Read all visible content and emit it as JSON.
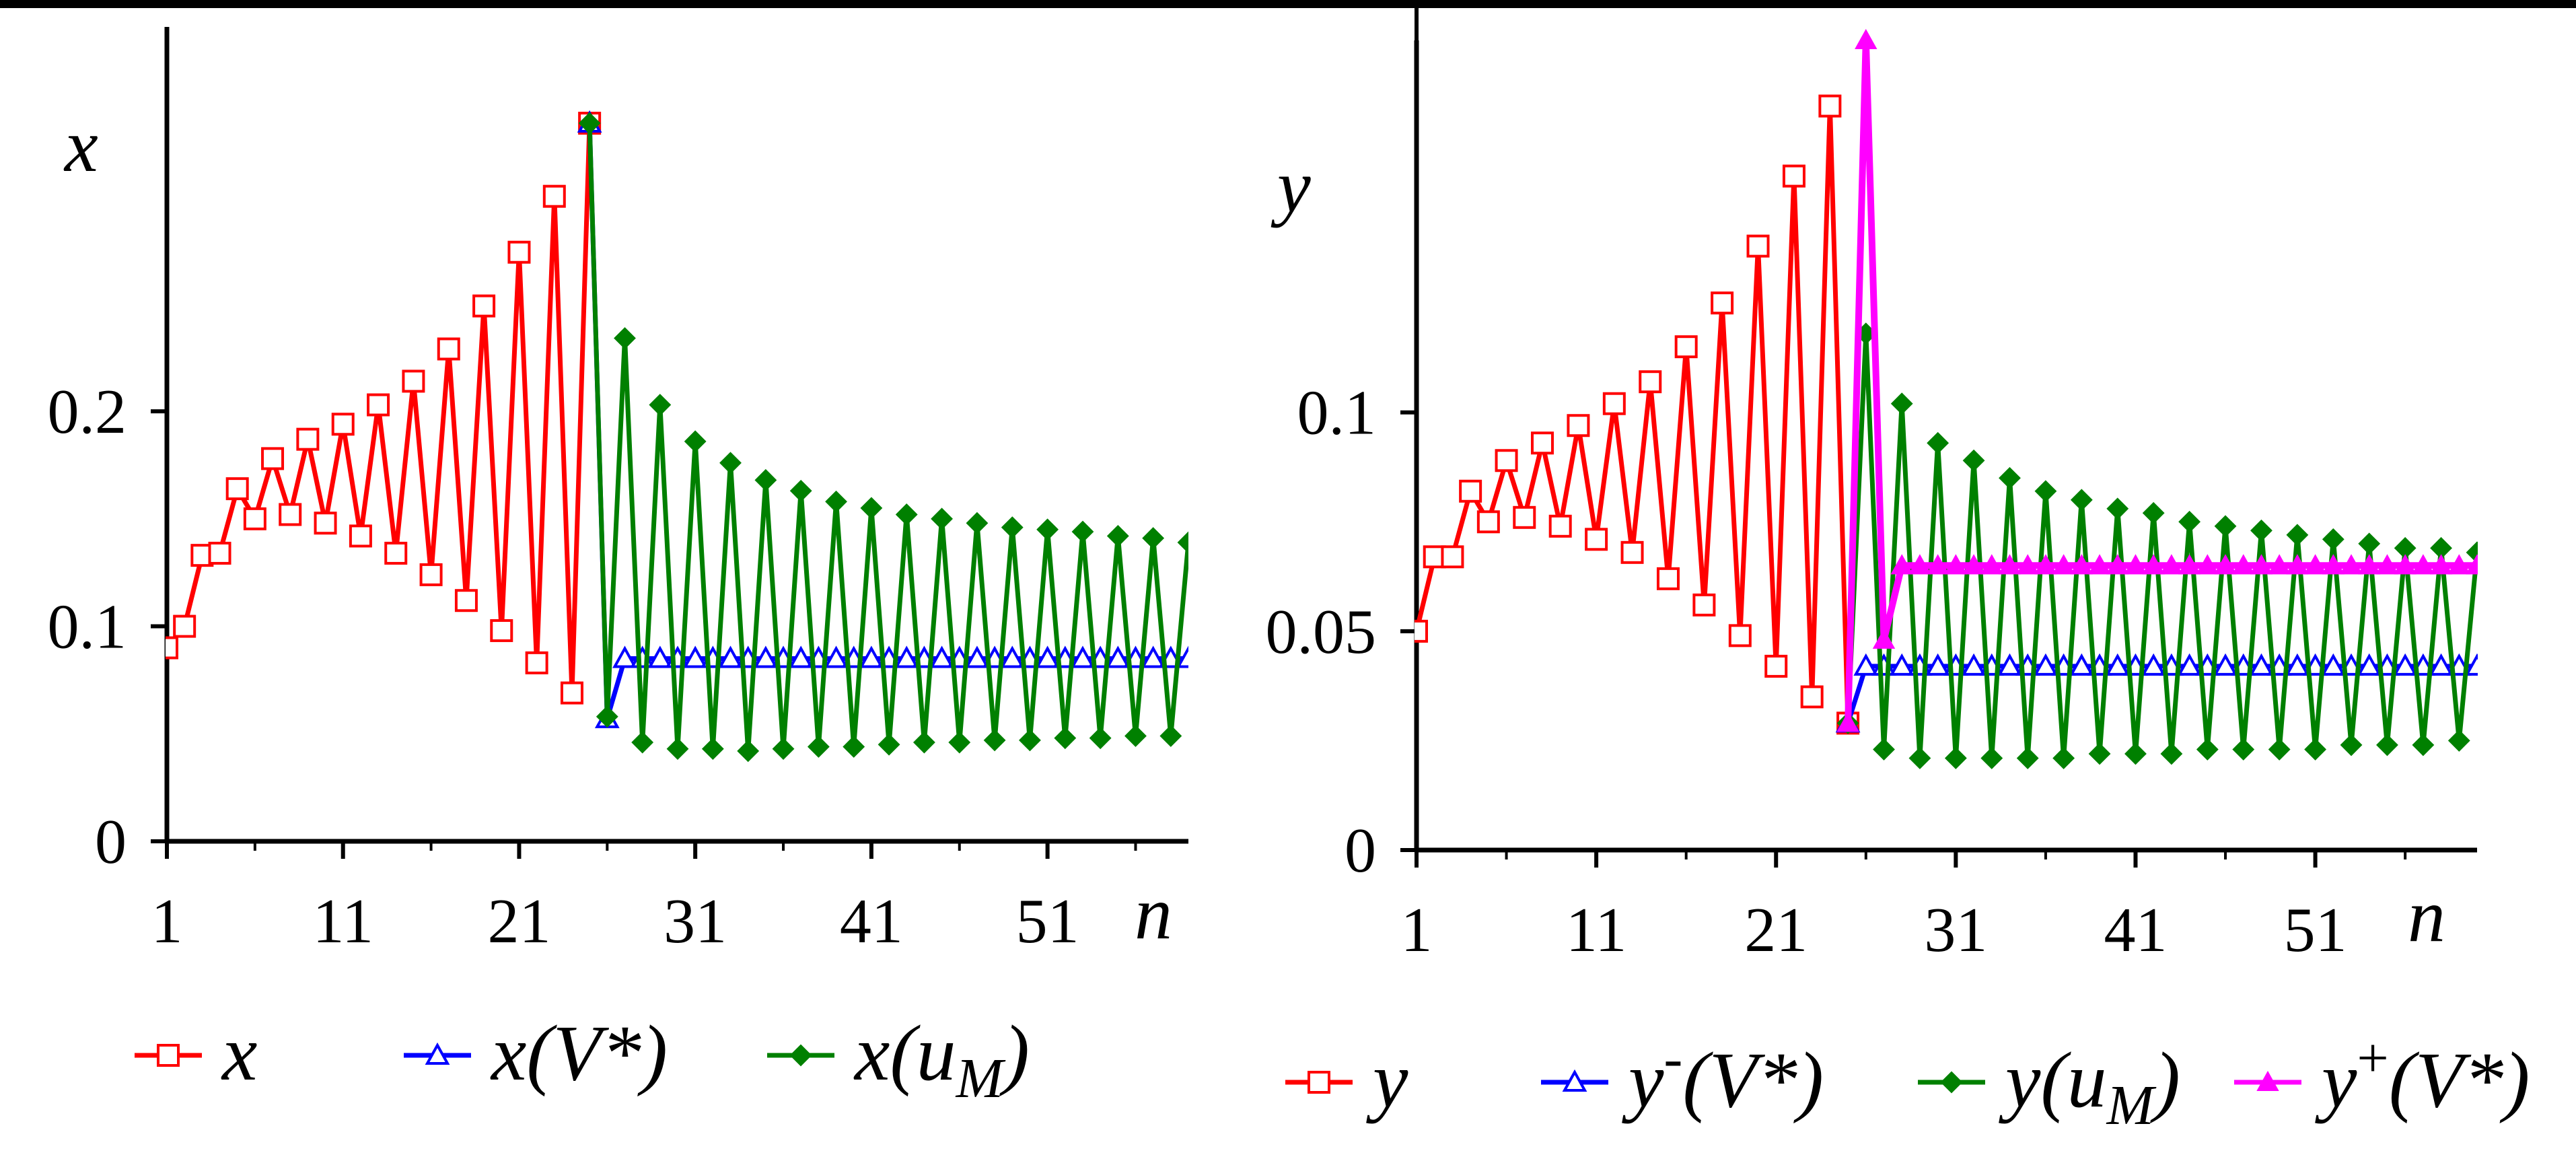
{
  "chart_data": [
    {
      "type": "line",
      "ylabel": "x",
      "xlabel": "n",
      "xlim": [
        1,
        59
      ],
      "ylim": [
        0,
        0.36
      ],
      "x_ticks": [
        "1",
        "11",
        "21",
        "31",
        "41",
        "51"
      ],
      "y_ticks": [
        "0",
        "0.1",
        "0.2"
      ],
      "grid": false,
      "legend_position": "bottom",
      "series": [
        {
          "name": "x",
          "color": "#ff0000",
          "marker": "open-square",
          "x": [
            1,
            2,
            3,
            4,
            5,
            6,
            7,
            8,
            9,
            10,
            11,
            12,
            13,
            14,
            15,
            16,
            17,
            18,
            19,
            20,
            21,
            22,
            23,
            24,
            25
          ],
          "y": [
            0.09,
            0.1,
            0.133,
            0.134,
            0.164,
            0.15,
            0.178,
            0.152,
            0.187,
            0.148,
            0.194,
            0.142,
            0.203,
            0.134,
            0.214,
            0.124,
            0.229,
            0.112,
            0.249,
            0.098,
            0.274,
            0.083,
            0.3,
            0.069,
            0.334
          ]
        },
        {
          "name": "x(V*)",
          "color": "#0000ff",
          "marker": "open-triangle",
          "x": [
            25,
            26,
            27,
            28,
            29,
            30,
            31,
            32,
            33,
            34,
            35,
            36,
            37,
            38,
            39,
            40,
            41,
            42,
            43,
            44,
            45,
            46,
            47,
            48,
            49,
            50,
            51,
            52,
            53,
            54,
            55,
            56,
            57,
            58,
            59
          ],
          "y": [
            0.334,
            0.057,
            0.085,
            0.085,
            0.085,
            0.085,
            0.085,
            0.085,
            0.085,
            0.085,
            0.085,
            0.085,
            0.085,
            0.085,
            0.085,
            0.085,
            0.085,
            0.085,
            0.085,
            0.085,
            0.085,
            0.085,
            0.085,
            0.085,
            0.085,
            0.085,
            0.085,
            0.085,
            0.085,
            0.085,
            0.085,
            0.085,
            0.085,
            0.085,
            0.085
          ]
        },
        {
          "name": "x(u_M)",
          "color": "#008000",
          "marker": "filled-diamond",
          "x": [
            25,
            26,
            27,
            28,
            29,
            30,
            31,
            32,
            33,
            34,
            35,
            36,
            37,
            38,
            39,
            40,
            41,
            42,
            43,
            44,
            45,
            46,
            47,
            48,
            49,
            50,
            51,
            52,
            53,
            54,
            55,
            56,
            57,
            58,
            59
          ],
          "y": [
            0.334,
            0.058,
            0.234,
            0.046,
            0.203,
            0.043,
            0.186,
            0.043,
            0.176,
            0.042,
            0.168,
            0.043,
            0.163,
            0.044,
            0.158,
            0.044,
            0.155,
            0.045,
            0.152,
            0.046,
            0.15,
            0.046,
            0.148,
            0.047,
            0.146,
            0.047,
            0.145,
            0.048,
            0.144,
            0.048,
            0.142,
            0.049,
            0.141,
            0.049,
            0.139
          ]
        }
      ]
    },
    {
      "type": "line",
      "ylabel": "y",
      "xlabel": "n",
      "xlim": [
        1,
        60
      ],
      "ylim": [
        0,
        0.185
      ],
      "x_ticks": [
        "1",
        "11",
        "21",
        "31",
        "41",
        "51"
      ],
      "y_ticks": [
        "0",
        "0.05",
        "0.1"
      ],
      "grid": false,
      "legend_position": "bottom",
      "series": [
        {
          "name": "y",
          "color": "#ff0000",
          "marker": "open-square",
          "x": [
            1,
            2,
            3,
            4,
            5,
            6,
            7,
            8,
            9,
            10,
            11,
            12,
            13,
            14,
            15,
            16,
            17,
            18,
            19,
            20,
            21,
            22,
            23,
            24,
            25
          ],
          "y": [
            0.05,
            0.067,
            0.067,
            0.082,
            0.075,
            0.089,
            0.076,
            0.093,
            0.074,
            0.097,
            0.071,
            0.102,
            0.068,
            0.107,
            0.062,
            0.115,
            0.056,
            0.125,
            0.049,
            0.138,
            0.042,
            0.154,
            0.035,
            0.17,
            0.029
          ]
        },
        {
          "name": "y⁻(V*)",
          "color": "#0000ff",
          "marker": "open-triangle",
          "x": [
            25,
            26,
            27,
            28,
            29,
            30,
            31,
            32,
            33,
            34,
            35,
            36,
            37,
            38,
            39,
            40,
            41,
            42,
            43,
            44,
            45,
            46,
            47,
            48,
            49,
            50,
            51,
            52,
            53,
            54,
            55,
            56,
            57,
            58,
            59,
            60
          ],
          "y": [
            0.029,
            0.042,
            0.042,
            0.042,
            0.042,
            0.042,
            0.042,
            0.042,
            0.042,
            0.042,
            0.042,
            0.042,
            0.042,
            0.042,
            0.042,
            0.042,
            0.042,
            0.042,
            0.042,
            0.042,
            0.042,
            0.042,
            0.042,
            0.042,
            0.042,
            0.042,
            0.042,
            0.042,
            0.042,
            0.042,
            0.042,
            0.042,
            0.042,
            0.042,
            0.042,
            0.042
          ]
        },
        {
          "name": "y(u_M)",
          "color": "#008000",
          "marker": "filled-diamond",
          "x": [
            25,
            26,
            27,
            28,
            29,
            30,
            31,
            32,
            33,
            34,
            35,
            36,
            37,
            38,
            39,
            40,
            41,
            42,
            43,
            44,
            45,
            46,
            47,
            48,
            49,
            50,
            51,
            52,
            53,
            54,
            55,
            56,
            57,
            58,
            59,
            60
          ],
          "y": [
            0.029,
            0.118,
            0.023,
            0.102,
            0.021,
            0.093,
            0.021,
            0.089,
            0.021,
            0.085,
            0.021,
            0.082,
            0.021,
            0.08,
            0.022,
            0.078,
            0.022,
            0.077,
            0.022,
            0.075,
            0.023,
            0.074,
            0.023,
            0.073,
            0.023,
            0.072,
            0.023,
            0.071,
            0.024,
            0.07,
            0.024,
            0.069,
            0.024,
            0.069,
            0.025,
            0.068
          ]
        },
        {
          "name": "y⁺(V*)",
          "color": "#ff00ff",
          "marker": "filled-triangle",
          "x": [
            25,
            26,
            27,
            28,
            29,
            30,
            31,
            32,
            33,
            34,
            35,
            36,
            37,
            38,
            39,
            40,
            41,
            42,
            43,
            44,
            45,
            46,
            47,
            48,
            49,
            50,
            51,
            52,
            53,
            54,
            55,
            56,
            57,
            58,
            59,
            60
          ],
          "y": [
            0.029,
            0.185,
            0.048,
            0.065,
            0.065,
            0.065,
            0.065,
            0.065,
            0.065,
            0.065,
            0.065,
            0.065,
            0.065,
            0.065,
            0.065,
            0.065,
            0.065,
            0.065,
            0.065,
            0.065,
            0.065,
            0.065,
            0.065,
            0.065,
            0.065,
            0.065,
            0.065,
            0.065,
            0.065,
            0.065,
            0.065,
            0.065,
            0.065,
            0.065,
            0.065,
            0.065
          ]
        }
      ]
    }
  ]
}
